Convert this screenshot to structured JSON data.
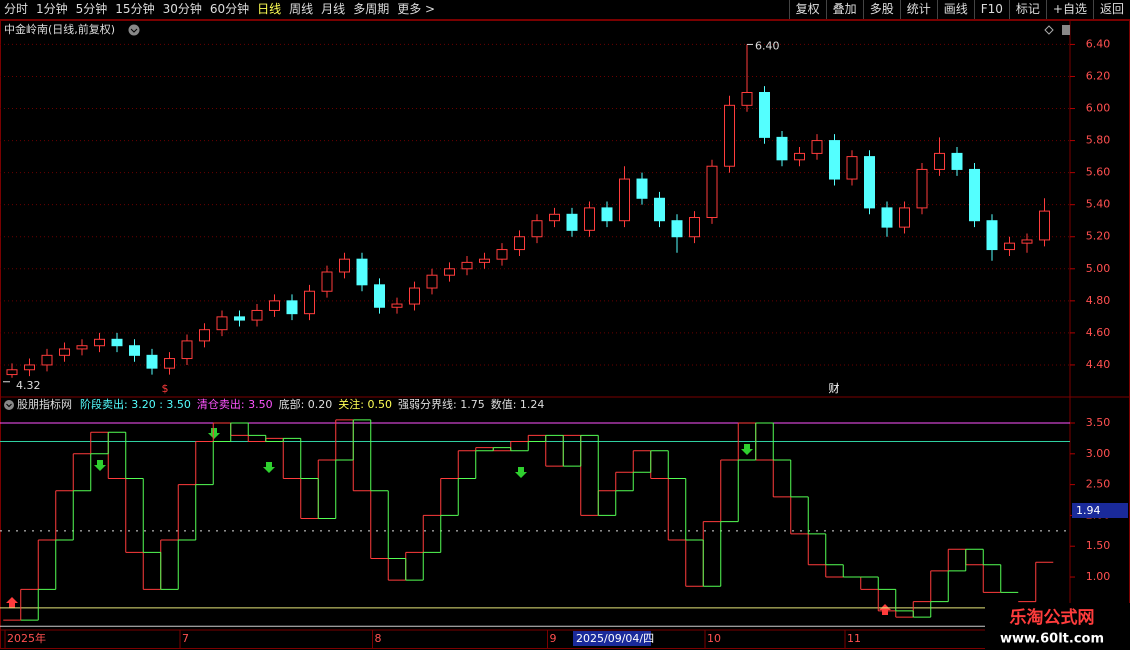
{
  "toolbar": {
    "periods": [
      "分时",
      "1分钟",
      "5分钟",
      "15分钟",
      "30分钟",
      "60分钟",
      "日线",
      "周线",
      "月线",
      "多周期",
      "更多 >"
    ],
    "active": "日线",
    "actions": [
      "复权",
      "叠加",
      "多股",
      "统计",
      "画线",
      "F10",
      "标记",
      "+自选",
      "返回"
    ]
  },
  "chart_data": [
    {
      "type": "candlestick",
      "title": "中金岭南(日线,前复权)",
      "categories": [
        "2025年",
        null,
        null,
        null,
        null,
        null,
        null,
        null,
        null,
        null,
        "7",
        null,
        null,
        null,
        null,
        null,
        null,
        null,
        null,
        null,
        null,
        "8",
        null,
        null,
        null,
        null,
        null,
        null,
        null,
        null,
        null,
        "9",
        null,
        null,
        null,
        null,
        null,
        null,
        null,
        null,
        "10",
        null,
        null,
        null,
        null,
        null,
        null,
        null,
        "11",
        null,
        null,
        null,
        null,
        null,
        null,
        null,
        null,
        null,
        null,
        null
      ],
      "cursor_label": "2025/09/04/四",
      "open": [
        4.34,
        4.37,
        4.4,
        4.46,
        4.5,
        4.52,
        4.56,
        4.52,
        4.46,
        4.38,
        4.44,
        4.55,
        4.62,
        4.7,
        4.68,
        4.74,
        4.8,
        4.72,
        4.86,
        4.98,
        5.06,
        4.9,
        4.76,
        4.78,
        4.88,
        4.96,
        5.0,
        5.04,
        5.06,
        5.12,
        5.2,
        5.3,
        5.34,
        5.24,
        5.38,
        5.3,
        5.56,
        5.44,
        5.3,
        5.2,
        5.32,
        5.64,
        6.02,
        6.1,
        5.82,
        5.68,
        5.72,
        5.8,
        5.56,
        5.7,
        5.38,
        5.26,
        5.38,
        5.62,
        5.72,
        5.62,
        5.3,
        5.12,
        5.16,
        5.18
      ],
      "high": [
        4.41,
        4.44,
        4.5,
        4.54,
        4.56,
        4.6,
        4.6,
        4.56,
        4.5,
        4.48,
        4.59,
        4.66,
        4.74,
        4.74,
        4.78,
        4.84,
        4.84,
        4.9,
        5.02,
        5.1,
        5.1,
        4.94,
        4.82,
        4.92,
        5.0,
        5.04,
        5.08,
        5.1,
        5.16,
        5.24,
        5.34,
        5.38,
        5.38,
        5.42,
        5.42,
        5.64,
        5.6,
        5.48,
        5.34,
        5.36,
        5.68,
        6.08,
        6.4,
        6.14,
        5.86,
        5.76,
        5.84,
        5.84,
        5.74,
        5.74,
        5.42,
        5.42,
        5.66,
        5.82,
        5.76,
        5.66,
        5.34,
        5.2,
        5.22,
        5.44
      ],
      "low": [
        4.32,
        4.33,
        4.36,
        4.42,
        4.46,
        4.48,
        4.48,
        4.42,
        4.34,
        4.34,
        4.4,
        4.51,
        4.58,
        4.64,
        4.64,
        4.7,
        4.68,
        4.68,
        4.82,
        4.94,
        4.86,
        4.72,
        4.72,
        4.74,
        4.84,
        4.92,
        4.96,
        5.0,
        5.02,
        5.08,
        5.16,
        5.26,
        5.2,
        5.2,
        5.26,
        5.26,
        5.4,
        5.26,
        5.1,
        5.16,
        5.28,
        5.6,
        5.98,
        5.78,
        5.64,
        5.64,
        5.68,
        5.52,
        5.52,
        5.34,
        5.2,
        5.22,
        5.34,
        5.58,
        5.58,
        5.26,
        5.05,
        5.08,
        5.1,
        5.14
      ],
      "close": [
        4.37,
        4.4,
        4.46,
        4.5,
        4.52,
        4.56,
        4.52,
        4.46,
        4.38,
        4.44,
        4.55,
        4.62,
        4.7,
        4.68,
        4.74,
        4.8,
        4.72,
        4.86,
        4.98,
        5.06,
        4.9,
        4.76,
        4.78,
        4.88,
        4.96,
        5.0,
        5.04,
        5.06,
        5.12,
        5.2,
        5.3,
        5.34,
        5.24,
        5.38,
        5.3,
        5.56,
        5.44,
        5.3,
        5.2,
        5.32,
        5.64,
        6.02,
        6.1,
        5.82,
        5.68,
        5.72,
        5.8,
        5.56,
        5.7,
        5.38,
        5.26,
        5.38,
        5.62,
        5.72,
        5.62,
        5.3,
        5.12,
        5.16,
        5.18,
        5.36
      ],
      "up_color": "#ff3c3c",
      "down_color": "#54ffff",
      "max_label": "6.40",
      "min_label": "4.32",
      "event_mark": "财",
      "ylim": [
        4.2,
        6.49
      ],
      "yticks": [
        {
          "value": 4.4,
          "label": "4.40"
        },
        {
          "value": 4.6,
          "label": "4.60"
        },
        {
          "value": 4.8,
          "label": "4.80"
        },
        {
          "value": 5.0,
          "label": "5.00"
        },
        {
          "value": 5.2,
          "label": "5.20"
        },
        {
          "value": 5.4,
          "label": "5.40"
        },
        {
          "value": 5.6,
          "label": "5.60"
        },
        {
          "value": 5.8,
          "label": "5.80"
        },
        {
          "value": 6.0,
          "label": "6.00"
        },
        {
          "value": 6.2,
          "label": "6.20"
        },
        {
          "value": 6.4,
          "label": "6.40"
        }
      ],
      "grid": true
    },
    {
      "type": "step",
      "title": "股朋指标网",
      "legend": [
        {
          "text": "阶段卖出: 3.20 : 3.50",
          "color": "#54ffff"
        },
        {
          "text": "清仓卖出: 3.50",
          "color": "#ff54ff"
        },
        {
          "text": "底部: 0.20",
          "color": "#dddddd"
        },
        {
          "text": "关注: 0.50",
          "color": "#ffff54"
        },
        {
          "text": "强弱分界线: 1.75",
          "color": "#dddddd"
        },
        {
          "text": "数值: 1.24",
          "color": "#dddddd"
        }
      ],
      "hlines": [
        {
          "value": 3.5,
          "color": "#ff54ff",
          "dashed": false
        },
        {
          "value": 3.2,
          "color": "#2fd0a0",
          "dashed": false
        },
        {
          "value": 1.75,
          "color": "#dddddd",
          "dashed": true
        },
        {
          "value": 0.5,
          "color": "#e6e67a",
          "dashed": false
        },
        {
          "value": 0.2,
          "color": "#cccccc",
          "dashed": false
        }
      ],
      "series": [
        {
          "name": "数值",
          "color": "#ff3c3c",
          "values": [
            0.3,
            0.8,
            1.6,
            2.4,
            3.0,
            3.35,
            2.6,
            1.4,
            0.8,
            1.6,
            2.5,
            3.2,
            3.5,
            3.3,
            3.2,
            3.25,
            2.6,
            1.95,
            2.9,
            3.55,
            2.4,
            1.3,
            0.95,
            1.4,
            2.0,
            2.6,
            3.05,
            3.1,
            3.05,
            3.2,
            3.3,
            2.8,
            3.3,
            2.0,
            2.4,
            2.7,
            3.05,
            2.6,
            1.6,
            0.85,
            1.9,
            2.9,
            3.5,
            2.9,
            2.3,
            1.7,
            1.2,
            1.0,
            1.0,
            0.8,
            0.45,
            0.35,
            0.6,
            1.1,
            1.45,
            1.2,
            0.75,
            null,
            0.6,
            1.24
          ]
        },
        {
          "name": "信号",
          "color": "#54ff54",
          "values": [
            null,
            0.3,
            0.8,
            1.6,
            2.4,
            3.0,
            3.35,
            2.6,
            1.4,
            0.8,
            1.6,
            2.5,
            3.2,
            3.5,
            3.3,
            3.2,
            3.25,
            2.6,
            1.95,
            2.9,
            3.55,
            2.4,
            1.3,
            0.95,
            1.4,
            2.0,
            2.6,
            3.05,
            3.1,
            3.05,
            3.2,
            3.3,
            2.8,
            3.3,
            2.0,
            2.4,
            2.7,
            3.05,
            2.6,
            1.6,
            0.85,
            1.9,
            2.9,
            3.5,
            2.9,
            2.3,
            1.7,
            1.2,
            1.0,
            1.0,
            0.8,
            0.45,
            0.35,
            0.6,
            1.1,
            1.45,
            1.2,
            0.75,
            null,
            null
          ]
        }
      ],
      "cursor_value": "1.94",
      "ylim": [
        0.14,
        3.63
      ],
      "yticks": [
        {
          "value": 1.0,
          "label": "1.00"
        },
        {
          "value": 1.5,
          "label": "1.50"
        },
        {
          "value": 2.0,
          "label": "2.00"
        },
        {
          "value": 2.5,
          "label": "2.50"
        },
        {
          "value": 3.0,
          "label": "3.00"
        },
        {
          "value": 3.5,
          "label": "3.50"
        }
      ]
    }
  ],
  "watermark": {
    "title": "乐淘公式网",
    "url": "www.60lt.com"
  }
}
